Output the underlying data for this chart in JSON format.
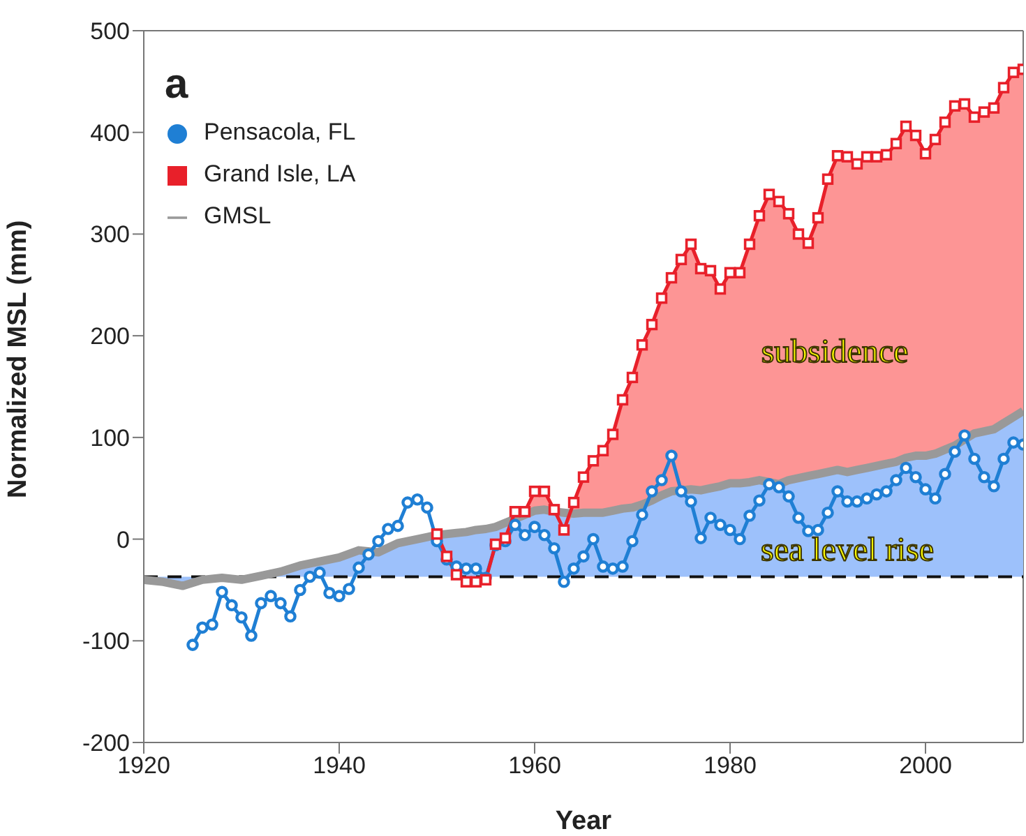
{
  "chart_data": {
    "type": "line",
    "xlabel": "Year",
    "ylabel": "Normalized MSL (mm)",
    "xlim": [
      1920,
      2010
    ],
    "xticks": [
      1920,
      1940,
      1960,
      1980,
      2000
    ],
    "ylim": [
      -200,
      500
    ],
    "yticks": [
      -200,
      -100,
      0,
      100,
      200,
      300,
      400,
      500
    ],
    "grid": false,
    "legend": "top left",
    "series": [
      {
        "name": "Pensacola, FL",
        "marker": "circle",
        "color": "#1f7fd4",
        "x": [
          1925,
          1926,
          1927,
          1928,
          1929,
          1930,
          1931,
          1932,
          1933,
          1934,
          1935,
          1936,
          1937,
          1938,
          1939,
          1940,
          1941,
          1942,
          1943,
          1944,
          1945,
          1946,
          1947,
          1948,
          1949,
          1950,
          1951,
          1952,
          1953,
          1954,
          1955,
          1956,
          1957,
          1958,
          1959,
          1960,
          1961,
          1962,
          1963,
          1964,
          1965,
          1966,
          1967,
          1968,
          1969,
          1970,
          1971,
          1972,
          1973,
          1974,
          1975,
          1976,
          1977,
          1978,
          1979,
          1980,
          1981,
          1982,
          1983,
          1984,
          1985,
          1986,
          1987,
          1988,
          1989,
          1990,
          1991,
          1992,
          1993,
          1994,
          1995,
          1996,
          1997,
          1998,
          1999,
          2000,
          2001,
          2002,
          2003,
          2004,
          2005,
          2006,
          2007,
          2008,
          2009,
          2010
        ],
        "values": [
          -104,
          -87,
          -84,
          -52,
          -65,
          -77,
          -95,
          -63,
          -56,
          -63,
          -76,
          -50,
          -37,
          -33,
          -53,
          -56,
          -49,
          -28,
          -15,
          -2,
          10,
          13,
          36,
          39,
          31,
          -2,
          -20,
          -27,
          -29,
          -29,
          -38,
          -6,
          -2,
          14,
          4,
          12,
          4,
          -9,
          -42,
          -29,
          -17,
          0,
          -27,
          -29,
          -27,
          -2,
          24,
          47,
          58,
          82,
          47,
          37,
          1,
          21,
          14,
          9,
          0,
          23,
          38,
          54,
          51,
          42,
          21,
          8,
          9,
          26,
          47,
          37,
          37,
          40,
          44,
          47,
          58,
          70,
          61,
          49,
          40,
          64,
          86,
          102,
          79,
          61,
          52,
          79,
          95,
          93
        ]
      },
      {
        "name": "Grand Isle, LA",
        "type": "area",
        "marker": "square",
        "color": "#e8202a",
        "x": [
          1950,
          1951,
          1952,
          1953,
          1954,
          1955,
          1956,
          1957,
          1958,
          1959,
          1960,
          1961,
          1962,
          1963,
          1964,
          1965,
          1966,
          1967,
          1968,
          1969,
          1970,
          1971,
          1972,
          1973,
          1974,
          1975,
          1976,
          1977,
          1978,
          1979,
          1980,
          1981,
          1982,
          1983,
          1984,
          1985,
          1986,
          1987,
          1988,
          1989,
          1990,
          1991,
          1992,
          1993,
          1994,
          1995,
          1996,
          1997,
          1998,
          1999,
          2000,
          2001,
          2002,
          2003,
          2004,
          2005,
          2006,
          2007,
          2008,
          2009,
          2010
        ],
        "values": [
          5,
          -17,
          -35,
          -42,
          -42,
          -40,
          -5,
          1,
          27,
          27,
          47,
          47,
          29,
          9,
          36,
          61,
          77,
          87,
          103,
          137,
          159,
          191,
          211,
          237,
          257,
          275,
          290,
          266,
          264,
          246,
          262,
          262,
          290,
          318,
          339,
          332,
          320,
          300,
          291,
          316,
          354,
          377,
          376,
          369,
          376,
          376,
          378,
          389,
          406,
          397,
          379,
          393,
          410,
          426,
          428,
          415,
          420,
          424,
          444,
          459,
          462
        ]
      },
      {
        "name": "GMSL",
        "type": "line",
        "marker": "none",
        "color": "#999999",
        "x": [
          1920,
          1922,
          1924,
          1926,
          1928,
          1930,
          1932,
          1934,
          1936,
          1938,
          1940,
          1942,
          1944,
          1946,
          1948,
          1950,
          1951,
          1952,
          1953,
          1954,
          1955,
          1956,
          1957,
          1958,
          1959,
          1960,
          1961,
          1962,
          1963,
          1964,
          1965,
          1966,
          1967,
          1968,
          1969,
          1970,
          1971,
          1972,
          1973,
          1974,
          1975,
          1976,
          1977,
          1978,
          1979,
          1980,
          1981,
          1982,
          1983,
          1984,
          1985,
          1986,
          1987,
          1988,
          1989,
          1990,
          1991,
          1992,
          1993,
          1994,
          1995,
          1996,
          1997,
          1998,
          1999,
          2000,
          2001,
          2002,
          2003,
          2004,
          2005,
          2006,
          2007,
          2008,
          2009,
          2010
        ],
        "values": [
          -40,
          -42,
          -46,
          -40,
          -38,
          -40,
          -36,
          -32,
          -26,
          -22,
          -18,
          -11,
          -13,
          -4,
          0,
          4,
          5,
          6,
          7,
          9,
          10,
          12,
          16,
          20,
          24,
          28,
          29,
          27,
          26,
          25,
          26,
          26,
          26,
          28,
          30,
          31,
          34,
          38,
          43,
          47,
          48,
          49,
          48,
          50,
          52,
          55,
          55,
          56,
          58,
          56,
          54,
          58,
          60,
          62,
          64,
          66,
          68,
          66,
          68,
          70,
          72,
          74,
          76,
          80,
          82,
          82,
          84,
          88,
          92,
          98,
          104,
          106,
          108,
          114,
          120,
          126
        ]
      }
    ],
    "ref_lines": [
      {
        "axis": "y",
        "value": -37,
        "color": "#111111",
        "line_style": "dashed"
      }
    ],
    "annotations": [
      "a",
      "subsidence",
      "sea level rise"
    ]
  }
}
